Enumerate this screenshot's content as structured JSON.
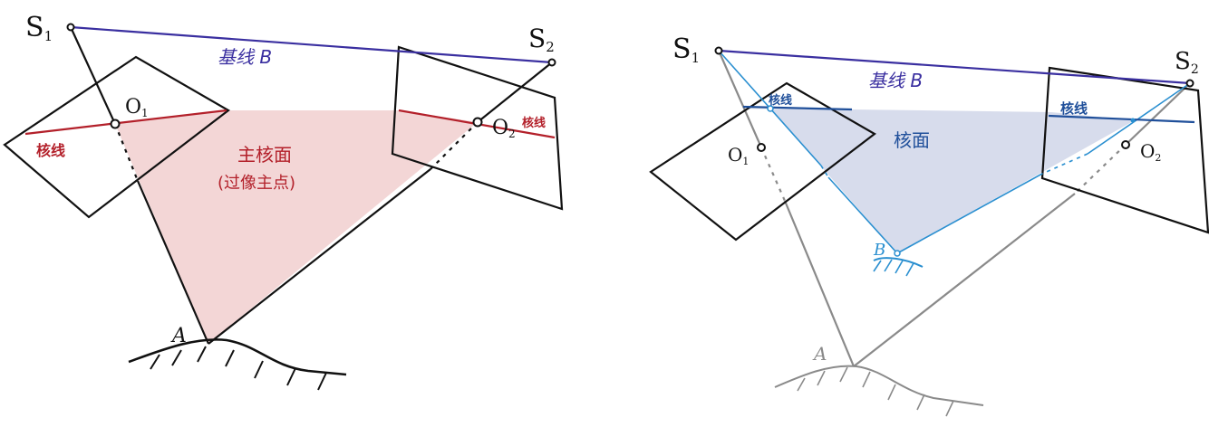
{
  "colors": {
    "ink": "#111111",
    "baseline": "#3a2fa0",
    "epipolar_red": "#b3202a",
    "plane_pink": "#f3d6d6",
    "ray_gray": "#8a8a8a",
    "blue_line": "#2a8fd0",
    "epipolar_blue": "#1f4f9a",
    "plane_blue": "#d7dcec"
  },
  "left_diagram": {
    "s1": "S",
    "s1_sub": "1",
    "s2": "S",
    "s2_sub": "2",
    "o1": "O",
    "o1_sub": "1",
    "o2": "O",
    "o2_sub": "2",
    "baseline_label": "基线 B",
    "epiline_left": "核线",
    "epiline_right": "核线",
    "plane_label": "主核面",
    "plane_sublabel": "(过像主点)",
    "point_a": "A"
  },
  "right_diagram": {
    "s1": "S",
    "s1_sub": "1",
    "s2": "S",
    "s2_sub": "2",
    "o1": "O",
    "o1_sub": "1",
    "o2": "O",
    "o2_sub": "2",
    "baseline_label": "基线 B",
    "epiline_left": "核线",
    "epiline_right": "核线",
    "plane_label": "核面",
    "point_b": "B",
    "point_a": "A"
  }
}
